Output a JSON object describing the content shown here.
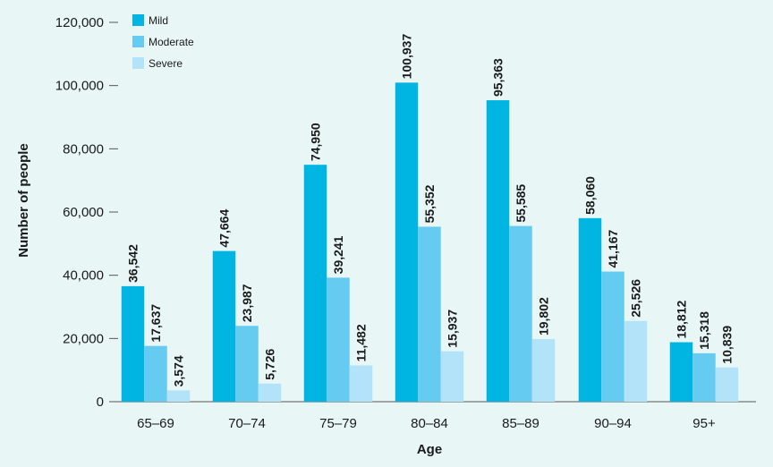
{
  "chart_data": {
    "type": "bar",
    "xlabel": "Age",
    "ylabel": "Number of people",
    "categories": [
      "65–69",
      "70–74",
      "75–79",
      "80–84",
      "85–89",
      "90–94",
      "95+"
    ],
    "series": [
      {
        "name": "Mild",
        "color": "#00b5e2",
        "values": [
          36542,
          47664,
          74950,
          100937,
          95363,
          58060,
          18812
        ],
        "labels": [
          "36,542",
          "47,664",
          "74,950",
          "100,937",
          "95,363",
          "58,060",
          "18,812"
        ]
      },
      {
        "name": "Moderate",
        "color": "#66cbf0",
        "values": [
          17637,
          23987,
          39241,
          55352,
          55585,
          41167,
          15318
        ],
        "labels": [
          "17,637",
          "23,987",
          "39,241",
          "55,352",
          "55,585",
          "41,167",
          "15,318"
        ]
      },
      {
        "name": "Severe",
        "color": "#b3e3f9",
        "values": [
          3574,
          5726,
          11482,
          15937,
          19802,
          25526,
          10839
        ],
        "labels": [
          "3,574",
          "5,726",
          "11,482",
          "15,937",
          "19,802",
          "25,526",
          "10,839"
        ]
      }
    ],
    "ylim": [
      0,
      120000
    ],
    "yticks": [
      0,
      20000,
      40000,
      60000,
      80000,
      100000,
      120000
    ],
    "ytick_labels": [
      "0",
      "20,000",
      "40,000",
      "60,000",
      "80,000",
      "100,000",
      "120,000"
    ],
    "grid": false,
    "legend_position": "top-left"
  }
}
